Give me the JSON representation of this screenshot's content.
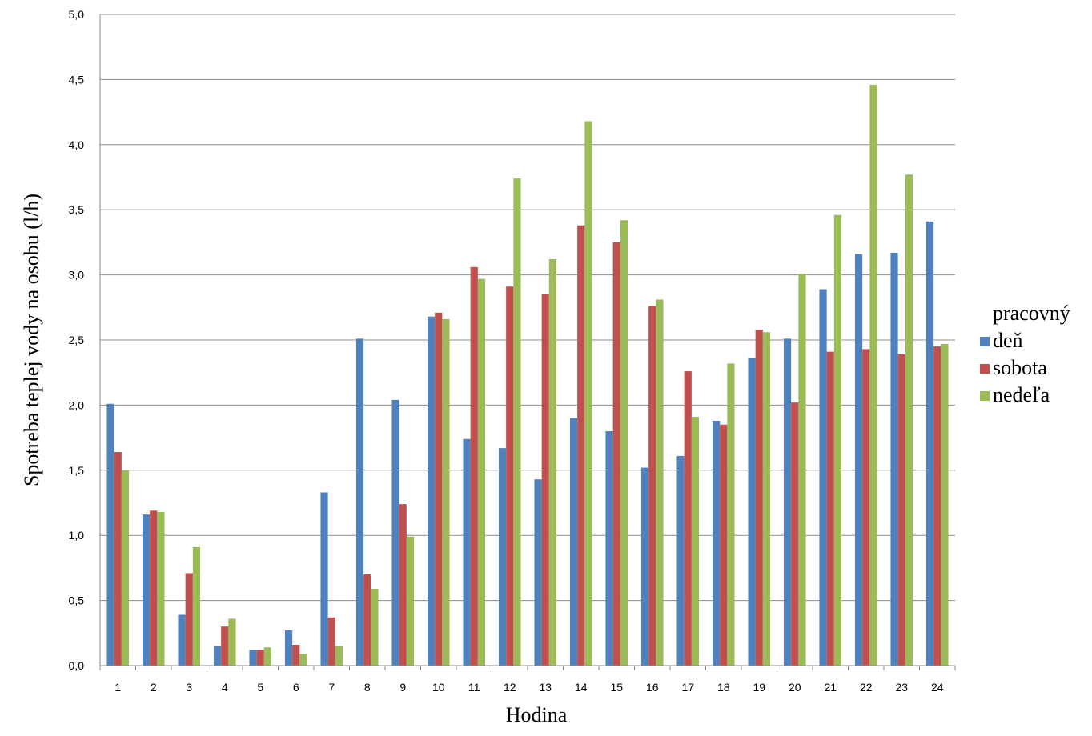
{
  "chart_data": {
    "type": "bar",
    "xlabel": "Hodina",
    "ylabel": "Spotreba teplej vody na osobu (l/h)",
    "ylim": [
      0,
      5
    ],
    "yticks": [
      "0,0",
      "0,5",
      "1,0",
      "1,5",
      "2,0",
      "2,5",
      "3,0",
      "3,5",
      "4,0",
      "4,5",
      "5,0"
    ],
    "grid": true,
    "legend_position": "right",
    "legend_title": "pracovný",
    "categories": [
      "1",
      "2",
      "3",
      "4",
      "5",
      "6",
      "7",
      "8",
      "9",
      "10",
      "11",
      "12",
      "13",
      "14",
      "15",
      "16",
      "17",
      "18",
      "19",
      "20",
      "21",
      "22",
      "23",
      "24"
    ],
    "series": [
      {
        "name": "deň",
        "color": "#4F81BD",
        "values": [
          2.01,
          1.16,
          0.39,
          0.15,
          0.12,
          0.27,
          1.33,
          2.51,
          2.04,
          2.68,
          1.74,
          1.67,
          1.43,
          1.9,
          1.8,
          1.52,
          1.61,
          1.88,
          2.36,
          2.51,
          2.89,
          3.16,
          3.17,
          3.41
        ]
      },
      {
        "name": "sobota",
        "color": "#C0504D",
        "values": [
          1.64,
          1.19,
          0.71,
          0.3,
          0.12,
          0.16,
          0.37,
          0.7,
          1.24,
          2.71,
          3.06,
          2.91,
          2.85,
          3.38,
          3.25,
          2.76,
          2.26,
          1.85,
          2.58,
          2.02,
          2.41,
          2.43,
          2.39,
          2.45
        ]
      },
      {
        "name": "nedeľa",
        "color": "#9BBB59",
        "values": [
          1.5,
          1.18,
          0.91,
          0.36,
          0.14,
          0.09,
          0.15,
          0.59,
          0.99,
          2.66,
          2.97,
          3.74,
          3.12,
          4.18,
          3.42,
          2.81,
          1.91,
          2.32,
          2.56,
          3.01,
          3.46,
          4.46,
          3.77,
          2.47
        ]
      }
    ]
  }
}
